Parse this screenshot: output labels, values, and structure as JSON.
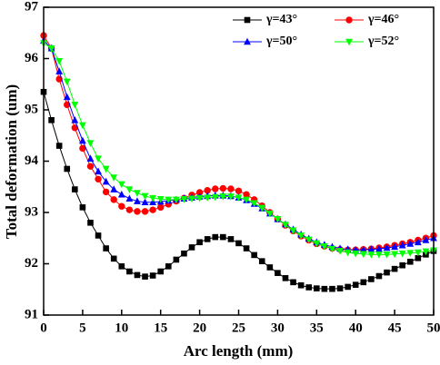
{
  "chart_data": {
    "type": "line",
    "x_label": "Arc length (mm)",
    "y_label": "Total deformation (um)",
    "x": [
      0,
      1,
      2,
      3,
      4,
      5,
      6,
      7,
      8,
      9,
      10,
      11,
      12,
      13,
      14,
      15,
      16,
      17,
      18,
      19,
      20,
      21,
      22,
      23,
      24,
      25,
      26,
      27,
      28,
      29,
      30,
      31,
      32,
      33,
      34,
      35,
      36,
      37,
      38,
      39,
      40,
      41,
      42,
      43,
      44,
      45,
      46,
      47,
      48,
      49,
      50
    ],
    "series": [
      {
        "name": "γ=43°",
        "color": "#000000",
        "marker": "square",
        "values": [
          95.35,
          94.8,
          94.3,
          93.85,
          93.45,
          93.1,
          92.8,
          92.55,
          92.3,
          92.1,
          91.95,
          91.85,
          91.78,
          91.75,
          91.77,
          91.85,
          91.95,
          92.08,
          92.2,
          92.32,
          92.42,
          92.48,
          92.52,
          92.52,
          92.48,
          92.4,
          92.3,
          92.17,
          92.05,
          91.93,
          91.82,
          91.72,
          91.64,
          91.58,
          91.54,
          91.52,
          91.51,
          91.51,
          91.52,
          91.55,
          91.59,
          91.64,
          91.7,
          91.76,
          91.83,
          91.9,
          91.97,
          92.04,
          92.11,
          92.18,
          92.25
        ]
      },
      {
        "name": "γ=46°",
        "color": "#ff0000",
        "marker": "circle",
        "values": [
          96.45,
          96.2,
          95.6,
          95.1,
          94.65,
          94.25,
          93.9,
          93.65,
          93.4,
          93.25,
          93.12,
          93.05,
          93.02,
          93.02,
          93.05,
          93.1,
          93.16,
          93.22,
          93.28,
          93.34,
          93.39,
          93.43,
          93.46,
          93.47,
          93.46,
          93.42,
          93.35,
          93.25,
          93.13,
          93.0,
          92.87,
          92.75,
          92.64,
          92.54,
          92.46,
          92.39,
          92.34,
          92.3,
          92.28,
          92.27,
          92.27,
          92.28,
          92.29,
          92.31,
          92.33,
          92.36,
          92.39,
          92.42,
          92.46,
          92.5,
          92.55
        ]
      },
      {
        "name": "γ=50°",
        "color": "#0000ff",
        "marker": "triangle-up",
        "values": [
          96.35,
          96.2,
          95.75,
          95.25,
          94.8,
          94.4,
          94.05,
          93.8,
          93.6,
          93.45,
          93.35,
          93.27,
          93.22,
          93.2,
          93.2,
          93.21,
          93.23,
          93.25,
          93.27,
          93.29,
          93.31,
          93.32,
          93.33,
          93.33,
          93.32,
          93.29,
          93.24,
          93.17,
          93.08,
          92.98,
          92.87,
          92.77,
          92.67,
          92.57,
          92.49,
          92.42,
          92.37,
          92.33,
          92.3,
          92.28,
          92.27,
          92.27,
          92.28,
          92.29,
          92.31,
          92.33,
          92.36,
          92.39,
          92.42,
          92.46,
          92.5
        ]
      },
      {
        "name": "γ=52°",
        "color": "#00ff00",
        "marker": "triangle-down",
        "values": [
          96.3,
          96.2,
          95.95,
          95.55,
          95.1,
          94.7,
          94.35,
          94.05,
          93.85,
          93.68,
          93.55,
          93.45,
          93.38,
          93.32,
          93.28,
          93.26,
          93.25,
          93.25,
          93.26,
          93.27,
          93.28,
          93.29,
          93.3,
          93.31,
          93.31,
          93.29,
          93.25,
          93.18,
          93.09,
          92.98,
          92.87,
          92.76,
          92.65,
          92.55,
          92.47,
          92.4,
          92.34,
          92.29,
          92.25,
          92.22,
          92.2,
          92.19,
          92.18,
          92.18,
          92.18,
          92.19,
          92.2,
          92.21,
          92.22,
          92.24,
          92.26
        ]
      }
    ],
    "xlim": [
      0,
      50
    ],
    "xticks": [
      0,
      5,
      10,
      15,
      20,
      25,
      30,
      35,
      40,
      45,
      50
    ],
    "ylim": [
      91,
      97
    ],
    "yticks": [
      91,
      92,
      93,
      94,
      95,
      96,
      97
    ],
    "grid": false,
    "legend": "upper right"
  }
}
